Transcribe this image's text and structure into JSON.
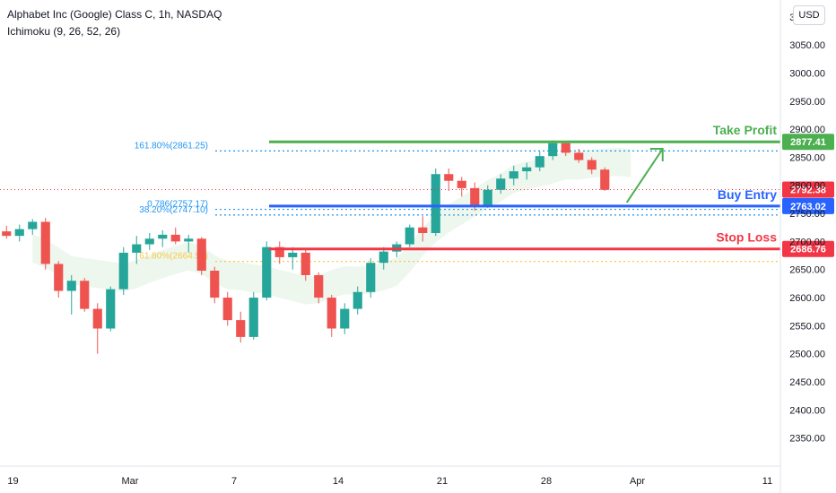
{
  "header": {
    "title": "Alphabet Inc (Google) Class C, 1h, NASDAQ",
    "indicator": "Ichimoku (9, 26, 52, 26)",
    "currency": "USD"
  },
  "colors": {
    "up": "#26a69a",
    "down": "#ef5350",
    "take_profit": "#4caf50",
    "buy_entry": "#2962ff",
    "stop_loss": "#f23645",
    "fib": "#2196f3",
    "fib_gold": "#f7c948",
    "current": "#f23645"
  },
  "chart_data": {
    "type": "candlestick",
    "title": "Alphabet Inc (Google) Class C, 1h, NASDAQ",
    "ylim": [
      2300,
      3130
    ],
    "y_ticks": [
      2350,
      2400,
      2450,
      2500,
      2550,
      2600,
      2650,
      2700,
      2750,
      2800,
      2850,
      2900,
      2950,
      3000,
      3050,
      3100
    ],
    "y_tick_labels": [
      "2350.00",
      "2400.00",
      "2450.00",
      "2500.00",
      "2550.00",
      "2600.00",
      "2650.00",
      "2700.00",
      "2750.00",
      "2800.00",
      "2850.00",
      "2900.00",
      "2950.00",
      "3000.00",
      "3050.00",
      "3100.00"
    ],
    "x_labels": [
      "19",
      "Mar",
      "7",
      "14",
      "21",
      "28",
      "Apr",
      "11"
    ],
    "x_label_positions": [
      0.5,
      9.5,
      17.5,
      25.5,
      33.5,
      41.5,
      48.5,
      58.5
    ],
    "candles": [
      [
        2718,
        2728,
        2705,
        2710
      ],
      [
        2710,
        2730,
        2700,
        2722
      ],
      [
        2722,
        2740,
        2712,
        2735
      ],
      [
        2735,
        2742,
        2650,
        2660
      ],
      [
        2660,
        2665,
        2600,
        2612
      ],
      [
        2612,
        2640,
        2570,
        2630
      ],
      [
        2630,
        2635,
        2575,
        2580
      ],
      [
        2580,
        2590,
        2500,
        2545
      ],
      [
        2545,
        2620,
        2540,
        2615
      ],
      [
        2615,
        2690,
        2605,
        2680
      ],
      [
        2680,
        2710,
        2660,
        2695
      ],
      [
        2695,
        2715,
        2685,
        2705
      ],
      [
        2705,
        2720,
        2690,
        2712
      ],
      [
        2712,
        2725,
        2695,
        2700
      ],
      [
        2700,
        2712,
        2680,
        2705
      ],
      [
        2705,
        2708,
        2640,
        2648
      ],
      [
        2648,
        2655,
        2590,
        2600
      ],
      [
        2600,
        2610,
        2550,
        2560
      ],
      [
        2560,
        2575,
        2520,
        2530
      ],
      [
        2530,
        2610,
        2525,
        2600
      ],
      [
        2600,
        2700,
        2595,
        2690
      ],
      [
        2690,
        2700,
        2660,
        2672
      ],
      [
        2672,
        2690,
        2650,
        2680
      ],
      [
        2680,
        2688,
        2630,
        2640
      ],
      [
        2640,
        2645,
        2590,
        2600
      ],
      [
        2600,
        2605,
        2530,
        2545
      ],
      [
        2545,
        2590,
        2535,
        2580
      ],
      [
        2580,
        2620,
        2570,
        2610
      ],
      [
        2610,
        2670,
        2600,
        2662
      ],
      [
        2662,
        2690,
        2650,
        2682
      ],
      [
        2682,
        2700,
        2672,
        2695
      ],
      [
        2695,
        2730,
        2690,
        2725
      ],
      [
        2725,
        2745,
        2700,
        2715
      ],
      [
        2715,
        2830,
        2710,
        2820
      ],
      [
        2820,
        2830,
        2790,
        2808
      ],
      [
        2808,
        2815,
        2780,
        2795
      ],
      [
        2795,
        2805,
        2755,
        2765
      ],
      [
        2765,
        2800,
        2760,
        2792
      ],
      [
        2792,
        2820,
        2785,
        2812
      ],
      [
        2812,
        2835,
        2800,
        2825
      ],
      [
        2825,
        2840,
        2810,
        2832
      ],
      [
        2832,
        2860,
        2825,
        2852
      ],
      [
        2852,
        2880,
        2845,
        2875
      ],
      [
        2875,
        2878,
        2852,
        2858
      ],
      [
        2858,
        2865,
        2840,
        2845
      ],
      [
        2845,
        2850,
        2820,
        2828
      ],
      [
        2828,
        2832,
        2790,
        2792
      ]
    ],
    "levels": [
      {
        "name": "Take Profit",
        "value": 2877.41,
        "label": "2877.41"
      },
      {
        "name": "Buy Entry",
        "value": 2763.02,
        "label": "2763.02"
      },
      {
        "name": "Stop Loss",
        "value": 2686.76,
        "label": "2686.76"
      },
      {
        "name": "Current price",
        "value": 2792.38,
        "label": "2792.38"
      }
    ],
    "fib_labels": [
      {
        "text": "161.80%(2861.25)",
        "value": 2861.25
      },
      {
        "text": "0.786(2757.17)",
        "value": 2757.17
      },
      {
        "text": "38.20%(2747.10)",
        "value": 2747.1
      },
      {
        "text": "61.80%(2664.55)",
        "value": 2664.55
      }
    ],
    "zone_labels": [
      "Take Profit",
      "Buy Entry",
      "Stop Loss"
    ]
  }
}
